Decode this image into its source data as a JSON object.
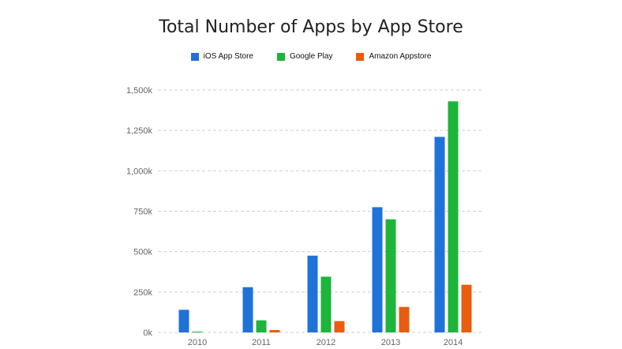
{
  "chart_data": {
    "type": "bar",
    "title": "Total Number of Apps by App Store",
    "categories": [
      "2010",
      "2011",
      "2012",
      "2013",
      "2014"
    ],
    "series": [
      {
        "name": "iOS App Store",
        "color": "#1f72d8",
        "values": [
          140,
          280,
          475,
          775,
          1210
        ]
      },
      {
        "name": "Google Play",
        "color": "#1db53a",
        "values": [
          5,
          75,
          345,
          700,
          1430
        ]
      },
      {
        "name": "Amazon Appstore",
        "color": "#e85d10",
        "values": [
          0,
          15,
          70,
          158,
          295
        ]
      }
    ],
    "ylim": [
      0,
      1500
    ],
    "yticks": [
      0,
      250,
      500,
      750,
      1000,
      1250,
      1500
    ],
    "ytick_labels": [
      "0k",
      "250k",
      "500k",
      "750k",
      "1,000k",
      "1,250k",
      "1,500k"
    ],
    "grid": true,
    "legend_position": "top-center"
  }
}
